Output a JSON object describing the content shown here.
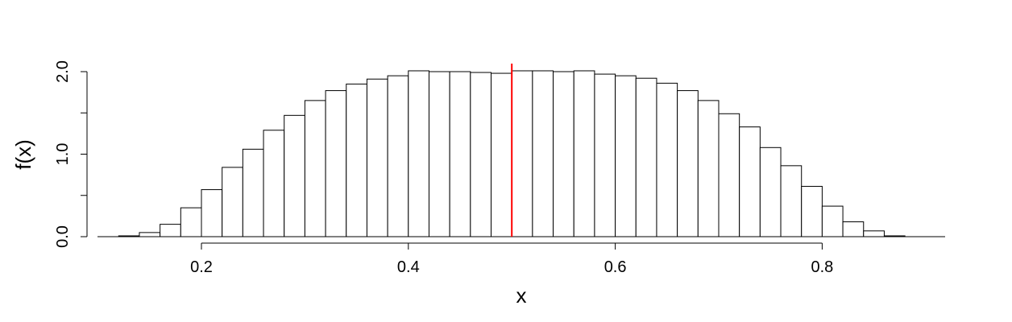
{
  "chart_data": {
    "type": "bar",
    "title": "",
    "xlabel": "x",
    "ylabel": "f(x)",
    "xlim": [
      0.1,
      0.92
    ],
    "ylim": [
      0,
      2.0
    ],
    "bin_width": 0.02,
    "bin_starts": [
      0.12,
      0.14,
      0.16,
      0.18,
      0.2,
      0.22,
      0.24,
      0.26,
      0.28,
      0.3,
      0.32,
      0.34,
      0.36,
      0.38,
      0.4,
      0.42,
      0.44,
      0.46,
      0.48,
      0.5,
      0.52,
      0.54,
      0.56,
      0.58,
      0.6,
      0.62,
      0.64,
      0.66,
      0.68,
      0.7,
      0.72,
      0.74,
      0.76,
      0.78,
      0.8,
      0.82,
      0.84,
      0.86
    ],
    "values": [
      0.01,
      0.05,
      0.15,
      0.35,
      0.57,
      0.84,
      1.06,
      1.29,
      1.47,
      1.65,
      1.77,
      1.85,
      1.91,
      1.95,
      2.01,
      2.0,
      2.0,
      1.99,
      1.98,
      2.01,
      2.01,
      2.0,
      2.01,
      1.97,
      1.95,
      1.92,
      1.86,
      1.77,
      1.65,
      1.49,
      1.33,
      1.08,
      0.86,
      0.61,
      0.37,
      0.18,
      0.07,
      0.01
    ],
    "x_ticks": [
      0.2,
      0.4,
      0.6,
      0.8
    ],
    "x_tick_labels": [
      "0.2",
      "0.4",
      "0.6",
      "0.8"
    ],
    "y_ticks": [
      0,
      0.5,
      1.0,
      1.5,
      2.0
    ],
    "y_tick_labels": [
      "0.0",
      "",
      "1.0",
      "",
      "2.0"
    ],
    "reference_line": {
      "x": 0.5,
      "color": "#ff0000"
    },
    "bar_fill": "#ffffff",
    "bar_stroke": "#000000",
    "grid": false
  }
}
